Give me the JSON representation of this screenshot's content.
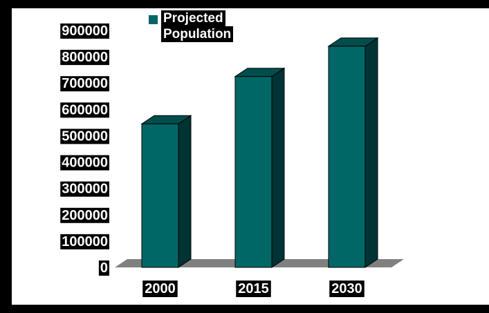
{
  "chart_data": {
    "type": "bar",
    "categories": [
      "2000",
      "2015",
      "2030"
    ],
    "series": [
      {
        "name": "Projected Population",
        "values": [
          545000,
          725000,
          840000
        ]
      }
    ],
    "yticks": [
      "0",
      "100000",
      "200000",
      "300000",
      "400000",
      "500000",
      "600000",
      "700000",
      "800000",
      "900000"
    ],
    "ylim": [
      0,
      900000
    ],
    "legend": {
      "label_line1": "Projected",
      "label_line2": "Population",
      "placement": "top-center"
    },
    "colors": {
      "bar_front": "#006666",
      "bar_top": "#004d4d",
      "bar_side": "#003333",
      "floor": "#808080",
      "background": "#ffffff",
      "frame": "#000000",
      "label_bg": "#000000",
      "label_text": "#ffffff"
    }
  }
}
